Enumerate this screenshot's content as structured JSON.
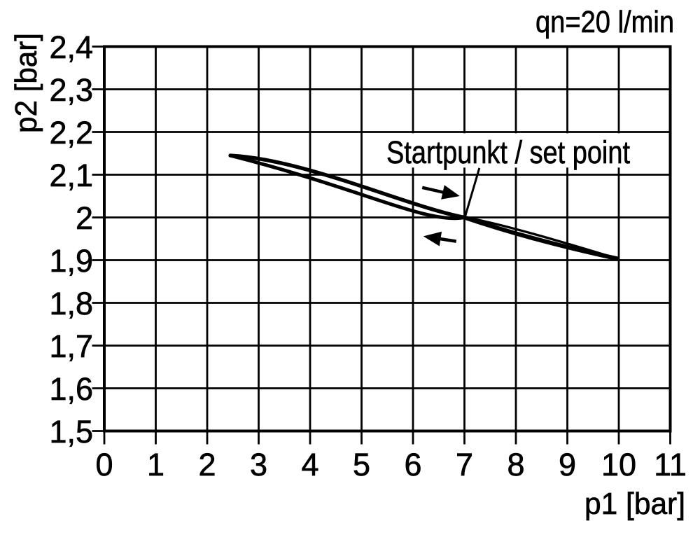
{
  "figure_title": "qn=20 l/min",
  "chart_data": {
    "type": "line",
    "title": "qn=20 l/min",
    "xlabel": "p1 [bar]",
    "ylabel": "p2 [bar]",
    "xlim": [
      0,
      11
    ],
    "ylim": [
      1.5,
      2.4
    ],
    "grid": true,
    "x_ticks": [
      {
        "value": 0,
        "label": "0"
      },
      {
        "value": 1,
        "label": "1"
      },
      {
        "value": 2,
        "label": "2"
      },
      {
        "value": 3,
        "label": "3"
      },
      {
        "value": 4,
        "label": "4"
      },
      {
        "value": 5,
        "label": "5"
      },
      {
        "value": 6,
        "label": "6"
      },
      {
        "value": 7,
        "label": "7"
      },
      {
        "value": 8,
        "label": "8"
      },
      {
        "value": 9,
        "label": "9"
      },
      {
        "value": 10,
        "label": "10"
      },
      {
        "value": 11,
        "label": "11"
      }
    ],
    "y_ticks": [
      {
        "value": 2.4,
        "label": "2,4"
      },
      {
        "value": 2.3,
        "label": "2,3"
      },
      {
        "value": 2.2,
        "label": "2,2"
      },
      {
        "value": 2.1,
        "label": "2,1"
      },
      {
        "value": 2.0,
        "label": "2"
      },
      {
        "value": 1.9,
        "label": "1,9"
      },
      {
        "value": 1.8,
        "label": "1,8"
      },
      {
        "value": 1.7,
        "label": "1,7"
      },
      {
        "value": 1.6,
        "label": "1,6"
      },
      {
        "value": 1.5,
        "label": "1,5"
      }
    ],
    "series": [
      {
        "name": "hysteresis-loop",
        "description": "p2 versus p1 hysteresis loop, pinched/crossing at the set point",
        "start_point": [
          2.45,
          2.145
        ],
        "set_point": [
          7.0,
          2.0
        ],
        "end_point": [
          9.97,
          1.9035
        ],
        "segments": [
          {
            "kind": "cubic",
            "from": [
              2.45,
              2.145
            ],
            "ctrl1": [
              3.9,
              2.1362
            ],
            "ctrl2": [
              5.9,
              2.0252
            ],
            "to": [
              7.0,
              2.0
            ]
          },
          {
            "kind": "cubic",
            "from": [
              2.45,
              2.145
            ],
            "ctrl1": [
              5.068,
              2.0649
            ],
            "ctrl2": [
              6.2736,
              1.9838
            ],
            "to": [
              7.0,
              2.0
            ]
          },
          {
            "kind": "quad",
            "from": [
              7.0,
              2.0
            ],
            "ctrl": [
              7.7,
              1.9875
            ],
            "to": [
              9.97,
              1.9035
            ]
          },
          {
            "kind": "quad",
            "from": [
              7.0,
              2.0
            ],
            "ctrl": [
              8.3,
              1.947
            ],
            "to": [
              9.97,
              1.9035
            ]
          }
        ]
      }
    ],
    "annotation": {
      "text": "Startpunkt / set point",
      "points_to": [
        7.0,
        2.0
      ],
      "leader": {
        "from": [
          7.29,
          2.1156
        ],
        "to": [
          7.01,
          2.001
        ]
      }
    },
    "direction_arrows": [
      {
        "direction": "right",
        "tail": [
          6.18,
          2.07
        ],
        "tip": [
          6.91,
          2.05
        ]
      },
      {
        "direction": "left",
        "tail": [
          6.84,
          1.944
        ],
        "tip": [
          6.2,
          1.956
        ]
      }
    ],
    "legend_position": "none",
    "colors": {
      "ink": "#000000",
      "background": "#ffffff"
    }
  }
}
